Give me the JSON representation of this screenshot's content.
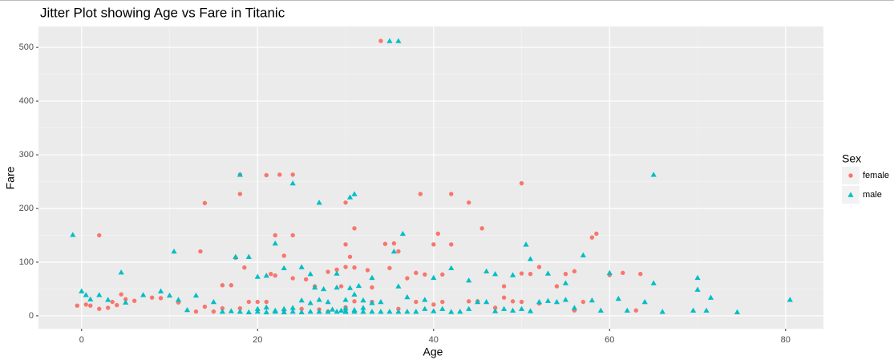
{
  "chart_data": {
    "type": "scatter",
    "title": "Jitter Plot showing Age vs Fare in Titanic",
    "x_label": "Age",
    "y_label": "Fare",
    "legend_title": "Sex",
    "legend_position": "right",
    "grid": true,
    "xlim": [
      -4.9,
      84.3
    ],
    "ylim": [
      -24,
      539
    ],
    "xticks": [
      0,
      20,
      40,
      60,
      80
    ],
    "yticks": [
      0,
      100,
      200,
      300,
      400,
      500
    ],
    "series": [
      {
        "name": "female",
        "color": "#F8766D",
        "shape": "circle",
        "x": [
          2,
          14,
          18,
          18,
          21,
          22.5,
          24,
          30,
          38.5,
          42,
          44,
          50,
          34,
          22,
          24,
          13.5,
          31,
          45.5,
          40.5,
          58.5,
          58,
          35.5,
          34.5,
          40,
          42,
          30,
          23,
          17.5,
          30.5,
          36,
          18.5,
          16,
          17,
          21.5,
          22,
          24,
          25.5,
          28,
          29,
          30,
          31,
          32.5,
          35,
          38,
          39,
          41,
          48,
          49,
          50,
          51,
          52,
          54,
          55,
          56,
          60,
          61.5,
          63.5,
          63,
          37,
          26.5,
          29.5,
          33,
          19,
          20,
          1,
          2,
          3,
          4,
          5,
          6,
          8,
          9,
          11,
          13,
          14,
          15,
          16,
          18,
          21,
          23,
          25,
          27,
          28,
          30,
          31,
          33,
          36,
          38,
          40,
          41,
          44,
          45,
          47,
          48,
          50,
          52,
          56,
          57,
          -0.5,
          0.5,
          3.5,
          4.5
        ],
        "values": [
          150,
          210,
          263,
          227,
          262,
          263,
          263,
          211,
          227,
          227,
          211,
          247,
          512,
          150,
          150,
          120,
          163,
          163,
          153,
          153,
          146,
          135,
          134,
          133,
          133,
          133,
          112,
          108,
          110,
          120,
          90,
          57,
          57,
          78,
          75,
          70,
          68,
          82,
          86,
          91,
          90,
          85,
          89,
          80,
          77,
          77,
          55,
          27,
          79,
          78,
          91,
          55,
          78,
          83,
          76,
          80,
          78,
          10,
          70,
          55,
          55,
          53,
          26,
          26,
          19,
          13,
          15,
          20,
          31,
          28,
          34,
          33,
          25,
          8,
          17,
          8,
          14,
          14,
          26,
          10,
          13,
          12,
          8,
          16,
          27,
          26,
          13,
          26,
          21,
          26,
          27,
          27,
          15,
          34,
          26,
          23,
          10,
          26,
          19,
          21,
          26,
          40
        ]
      },
      {
        "name": "male",
        "color": "#00BFC4",
        "shape": "triangle",
        "x": [
          -1,
          35,
          36,
          65,
          18,
          24,
          31,
          30.5,
          27,
          36.5,
          50.5,
          22,
          10.5,
          35.5,
          4.5,
          17.5,
          19,
          20,
          21,
          23,
          25,
          26,
          29,
          33,
          40,
          42,
          44,
          46,
          47,
          49,
          51,
          53,
          55,
          57,
          60,
          65,
          70,
          70,
          71.5,
          69.5,
          74.5,
          80.5,
          0,
          0.5,
          1,
          2,
          3,
          5,
          7,
          9,
          10,
          11,
          12,
          13,
          15,
          16,
          17,
          18,
          19,
          20,
          21,
          22,
          23,
          24,
          25,
          26,
          27,
          28,
          29,
          30,
          31,
          32,
          33,
          34,
          35,
          36,
          37,
          38,
          39,
          40,
          41,
          42,
          43,
          44,
          45,
          46,
          47,
          48,
          49,
          50,
          51,
          52,
          53,
          54,
          55,
          56,
          58,
          59,
          61,
          62,
          64,
          66,
          71,
          30,
          31,
          32,
          33,
          34,
          28,
          27,
          26,
          25,
          24,
          23,
          22,
          21,
          20,
          29,
          30.5,
          31.5,
          27.5,
          26.5,
          37,
          39,
          36,
          32,
          30,
          29.5,
          28.5,
          30,
          31
        ],
        "values": [
          151,
          512,
          512,
          263,
          263,
          247,
          227,
          221,
          211,
          153,
          133,
          135,
          120,
          120,
          81,
          110,
          110,
          73,
          75,
          89,
          91,
          78,
          79,
          71,
          71,
          89,
          66,
          83,
          78,
          76,
          106,
          79,
          61,
          113,
          80,
          61,
          71,
          49,
          34,
          10,
          7,
          30,
          46,
          39,
          31,
          39,
          30,
          25,
          39,
          46,
          38,
          30,
          11,
          38,
          26,
          8,
          9,
          8,
          7,
          8,
          7,
          8,
          7,
          8,
          7,
          8,
          7.9,
          7.8,
          8,
          7.7,
          8,
          7.9,
          8,
          7.8,
          8,
          7.8,
          8,
          7.9,
          13,
          9,
          13,
          7.5,
          8,
          13,
          26,
          26,
          9,
          13,
          10,
          13,
          9,
          26,
          28,
          26,
          30,
          15,
          29,
          10,
          32,
          10,
          26,
          7.7,
          10,
          30,
          40,
          29,
          24,
          26,
          26,
          30,
          24,
          29,
          15,
          13,
          10,
          16,
          13,
          53,
          52,
          56,
          50,
          53,
          35,
          30,
          55,
          15,
          9,
          10,
          12,
          14,
          11
        ]
      }
    ]
  }
}
